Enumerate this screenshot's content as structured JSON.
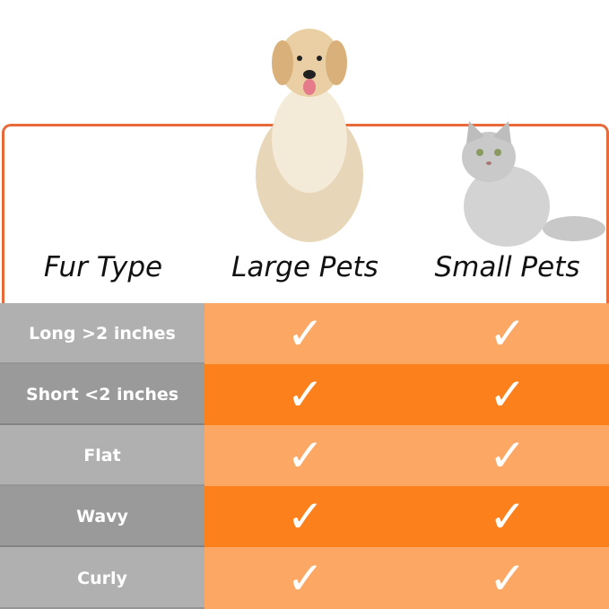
{
  "headers": {
    "fur_type": "Fur Type",
    "large": "Large Pets",
    "small": "Small Pets"
  },
  "rows": [
    {
      "label": "Long >2 inches",
      "large": true,
      "small": true
    },
    {
      "label": "Short <2 inches",
      "large": true,
      "small": true
    },
    {
      "label": "Flat",
      "large": true,
      "small": true
    },
    {
      "label": "Wavy",
      "large": true,
      "small": true
    },
    {
      "label": "Curly",
      "large": true,
      "small": true
    }
  ],
  "check_glyph": "✓",
  "colors": {
    "border": "#e8693a",
    "gray_light": "#b0b0b0",
    "gray_dark": "#9a9a9a",
    "orange_light": "#fca864",
    "orange_dark": "#fc801c"
  }
}
